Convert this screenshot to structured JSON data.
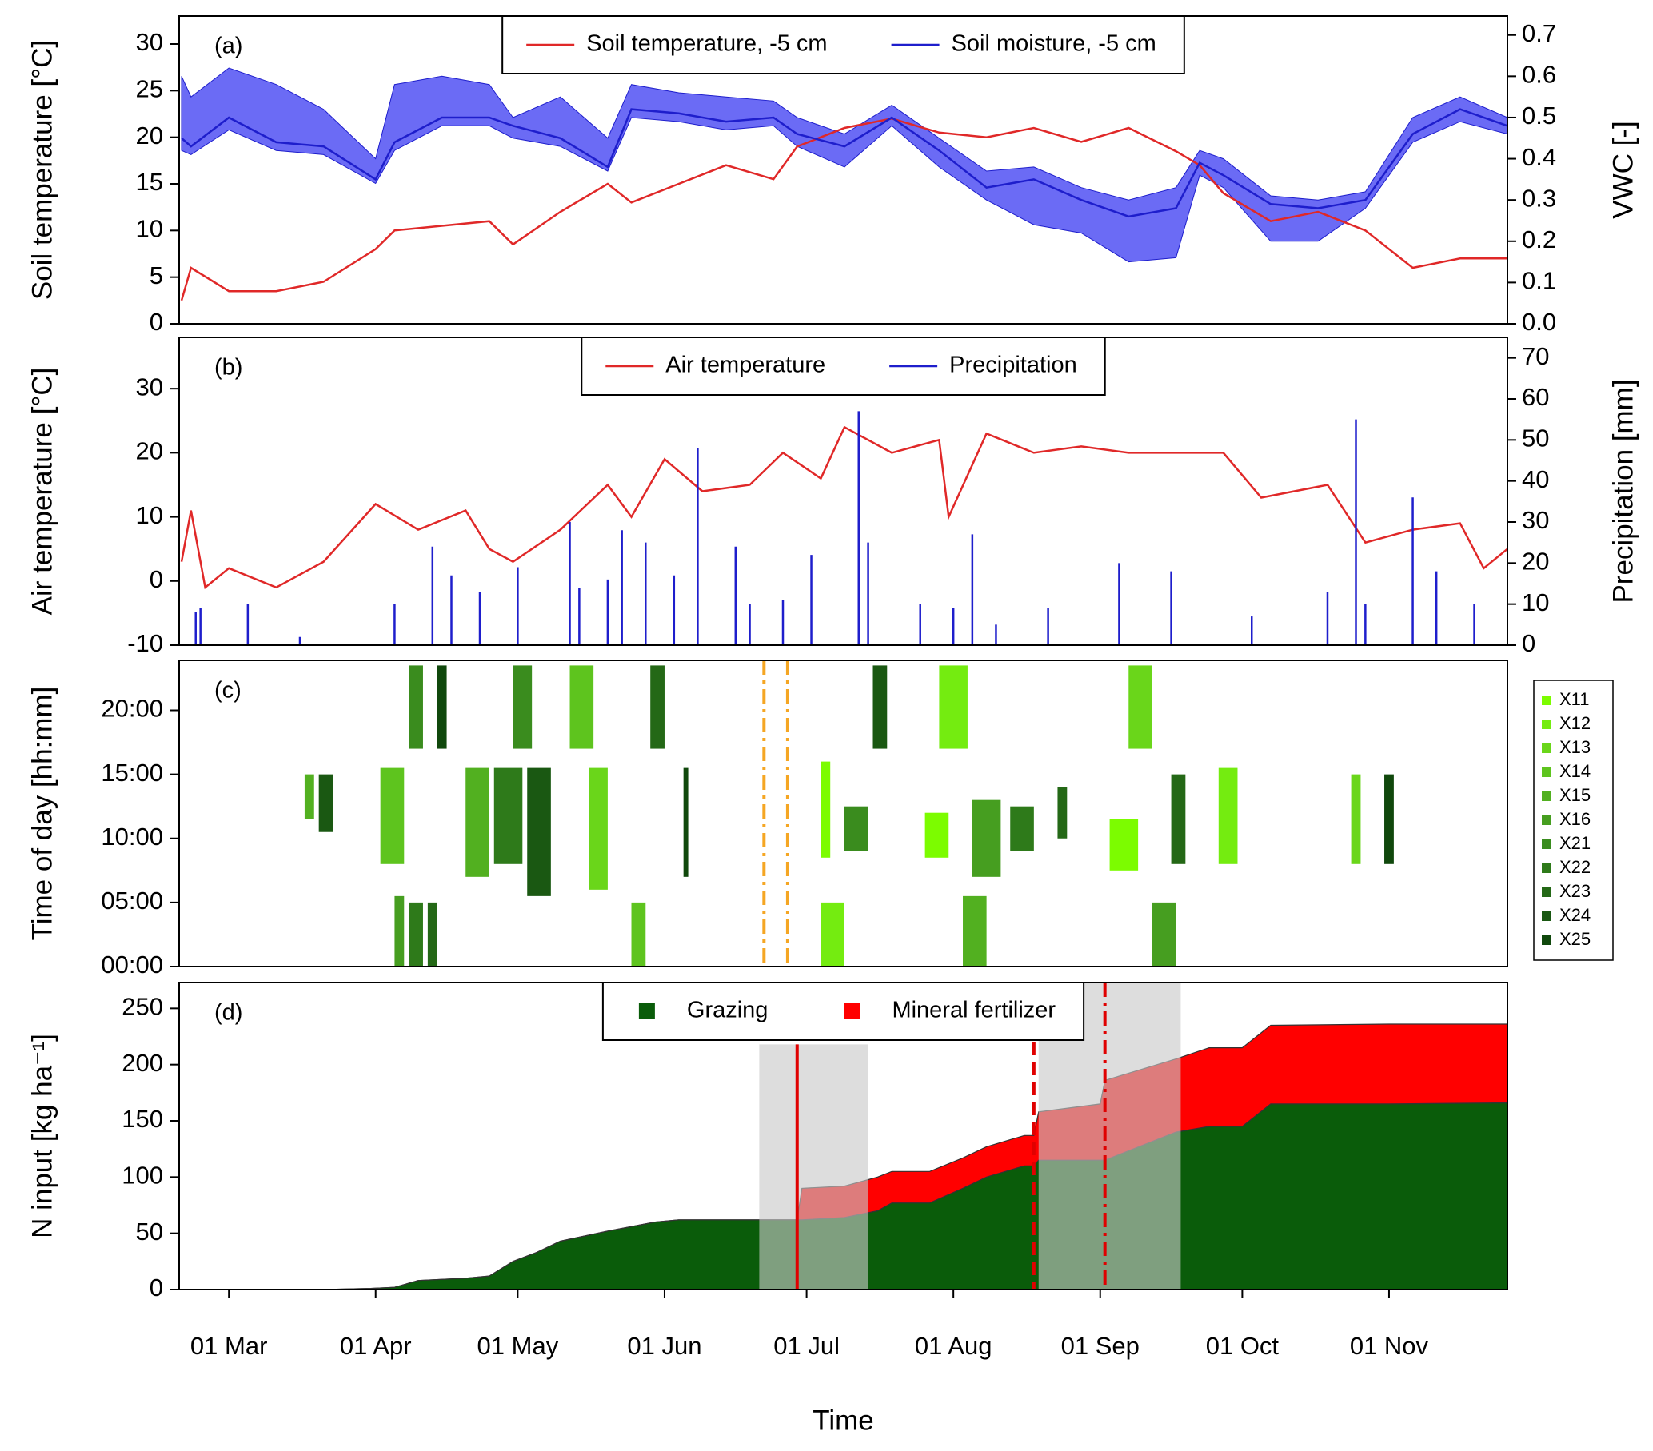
{
  "chart_data": [
    {
      "type": "line",
      "panel_label": "(a)",
      "ylabel": "Soil temperature [°C]",
      "y2label": "VWC [-]",
      "xlim": [
        -10.5,
        270
      ],
      "ylim": [
        0,
        33
      ],
      "yticks": [
        0,
        5,
        10,
        15,
        20,
        25,
        30
      ],
      "y2lim": [
        0,
        0.746
      ],
      "y2ticks": [
        {
          "value": 0,
          "label": "0.0"
        },
        0.1,
        0.2,
        0.3,
        0.4,
        0.5,
        0.6,
        0.7
      ],
      "legend": "top",
      "x": [
        -10,
        -8,
        0,
        10,
        20,
        31,
        35,
        45,
        55,
        60,
        70,
        80,
        85,
        95,
        105,
        115,
        120,
        130,
        140,
        150,
        160,
        170,
        180,
        190,
        200,
        205,
        210,
        220,
        230,
        240,
        250,
        260,
        270
      ],
      "series": [
        {
          "name": "Soil temperature, -5 cm",
          "color": "#e02828",
          "values": [
            2.5,
            6,
            3.5,
            3.5,
            4.5,
            8,
            10,
            10.5,
            11,
            8.5,
            12,
            15,
            13,
            15,
            17,
            15.5,
            19,
            21,
            22,
            20.5,
            20,
            21,
            19.5,
            21,
            18.5,
            17,
            14,
            11,
            12,
            10,
            6,
            7,
            7
          ]
        },
        {
          "name": "Soil moisture, -5 cm",
          "color": "#1e1ecc",
          "band_color": "#6b6bf5",
          "axis": "y2",
          "values": [
            0.45,
            0.43,
            0.5,
            0.44,
            0.43,
            0.35,
            0.44,
            0.5,
            0.5,
            0.48,
            0.45,
            0.38,
            0.52,
            0.51,
            0.49,
            0.5,
            0.46,
            0.43,
            0.5,
            0.42,
            0.33,
            0.35,
            0.3,
            0.26,
            0.28,
            0.39,
            0.36,
            0.29,
            0.28,
            0.3,
            0.46,
            0.52,
            0.48
          ],
          "lower": [
            0.42,
            0.41,
            0.47,
            0.42,
            0.41,
            0.34,
            0.42,
            0.48,
            0.48,
            0.45,
            0.43,
            0.37,
            0.5,
            0.49,
            0.47,
            0.48,
            0.43,
            0.38,
            0.48,
            0.38,
            0.3,
            0.24,
            0.22,
            0.15,
            0.16,
            0.36,
            0.33,
            0.2,
            0.2,
            0.28,
            0.44,
            0.49,
            0.46
          ],
          "upper": [
            0.6,
            0.55,
            0.62,
            0.58,
            0.52,
            0.4,
            0.58,
            0.6,
            0.58,
            0.5,
            0.55,
            0.45,
            0.58,
            0.56,
            0.55,
            0.54,
            0.5,
            0.46,
            0.53,
            0.45,
            0.37,
            0.38,
            0.33,
            0.3,
            0.33,
            0.42,
            0.4,
            0.31,
            0.3,
            0.32,
            0.5,
            0.55,
            0.5
          ]
        }
      ]
    },
    {
      "type": "combo",
      "panel_label": "(b)",
      "ylabel": "Air temperature [°C]",
      "y2label": "Precipitation [mm]",
      "xlim": [
        -10.5,
        270
      ],
      "ylim": [
        -10,
        38
      ],
      "yticks": [
        -10,
        0,
        10,
        20,
        30
      ],
      "y2lim": [
        0,
        75
      ],
      "y2ticks": [
        0,
        10,
        20,
        30,
        40,
        50,
        60,
        70
      ],
      "legend": "top",
      "series": [
        {
          "name": "Air temperature",
          "color": "#e02828",
          "kind": "line",
          "x": [
            -10,
            -8,
            -5,
            0,
            10,
            20,
            31,
            40,
            50,
            55,
            60,
            70,
            80,
            85,
            92,
            100,
            110,
            117,
            125,
            130,
            140,
            150,
            152,
            160,
            170,
            180,
            190,
            200,
            210,
            218,
            225,
            232,
            240,
            250,
            260,
            265,
            270
          ],
          "values": [
            3,
            11,
            -1,
            2,
            -1,
            3,
            12,
            8,
            11,
            5,
            3,
            8,
            15,
            10,
            19,
            14,
            15,
            20,
            16,
            24,
            20,
            22,
            10,
            23,
            20,
            21,
            20,
            20,
            20,
            13,
            14,
            15,
            6,
            8,
            9,
            2,
            5
          ]
        },
        {
          "name": "Precipitation",
          "color": "#1e1ecc",
          "kind": "bar",
          "axis": "y2",
          "x": [
            -7,
            -6,
            4,
            15,
            35,
            43,
            47,
            53,
            61,
            72,
            74,
            80,
            83,
            88,
            94,
            99,
            107,
            110,
            117,
            123,
            133,
            135,
            146,
            153,
            157,
            162,
            173,
            188,
            199,
            216,
            232,
            238,
            240,
            250,
            255,
            263
          ],
          "values": [
            8,
            9,
            10,
            2,
            10,
            24,
            17,
            13,
            19,
            30,
            14,
            16,
            28,
            25,
            17,
            48,
            24,
            10,
            11,
            22,
            57,
            25,
            10,
            9,
            27,
            5,
            9,
            20,
            18,
            7,
            13,
            55,
            10,
            36,
            18,
            10
          ]
        }
      ]
    },
    {
      "type": "timeline",
      "panel_label": "(c)",
      "ylabel": "Time of day [hh:mm]",
      "xlim": [
        -10.5,
        270
      ],
      "ylim": [
        0,
        23.9
      ],
      "yticks": [
        {
          "value": 0,
          "label": "00:00"
        },
        {
          "value": 5,
          "label": "05:00"
        },
        {
          "value": 10,
          "label": "10:00"
        },
        {
          "value": 15,
          "label": "15:00"
        },
        {
          "value": 20,
          "label": "20:00"
        }
      ],
      "legend": "right",
      "vlines": {
        "x": [
          113,
          118
        ],
        "color": "#f5a623",
        "style": "dashdot"
      },
      "series": [
        {
          "name": "X11",
          "color": "#7cfc00",
          "blocks": [
            {
              "x": [
                125,
                127
              ],
              "y": [
                8.5,
                16
              ]
            },
            {
              "x": [
                147,
                152
              ],
              "y": [
                8.5,
                12
              ]
            },
            {
              "x": [
                186,
                192
              ],
              "y": [
                7.5,
                11.5
              ]
            }
          ]
        },
        {
          "name": "X12",
          "color": "#74ec10",
          "blocks": [
            {
              "x": [
                125,
                130
              ],
              "y": [
                0,
                5
              ]
            },
            {
              "x": [
                150,
                156
              ],
              "y": [
                17,
                23.5
              ]
            },
            {
              "x": [
                209,
                213
              ],
              "y": [
                8,
                15.5
              ]
            }
          ]
        },
        {
          "name": "X13",
          "color": "#6ad61a",
          "blocks": [
            {
              "x": [
                237,
                239
              ],
              "y": [
                8,
                15
              ]
            },
            {
              "x": [
                190,
                195
              ],
              "y": [
                17,
                23.5
              ]
            },
            {
              "x": [
                76,
                80
              ],
              "y": [
                6,
                15.5
              ]
            }
          ]
        },
        {
          "name": "X14",
          "color": "#5ec41e",
          "blocks": [
            {
              "x": [
                32,
                37
              ],
              "y": [
                8,
                15.5
              ]
            },
            {
              "x": [
                85,
                88
              ],
              "y": [
                0,
                5
              ]
            },
            {
              "x": [
                72,
                77
              ],
              "y": [
                17,
                23.5
              ]
            }
          ]
        },
        {
          "name": "X15",
          "color": "#52b020",
          "blocks": [
            {
              "x": [
                16,
                18
              ],
              "y": [
                11.5,
                15
              ]
            },
            {
              "x": [
                50,
                55
              ],
              "y": [
                7,
                15.5
              ]
            },
            {
              "x": [
                155,
                160
              ],
              "y": [
                0,
                5.5
              ]
            }
          ]
        },
        {
          "name": "X16",
          "color": "#469e20",
          "blocks": [
            {
              "x": [
                35,
                37
              ],
              "y": [
                0,
                5.5
              ]
            },
            {
              "x": [
                157,
                163
              ],
              "y": [
                7,
                13
              ]
            },
            {
              "x": [
                195,
                200
              ],
              "y": [
                0,
                5
              ]
            }
          ]
        },
        {
          "name": "X21",
          "color": "#3a8c1e",
          "blocks": [
            {
              "x": [
                38,
                41
              ],
              "y": [
                17,
                23.5
              ]
            },
            {
              "x": [
                60,
                64
              ],
              "y": [
                17,
                23.5
              ]
            },
            {
              "x": [
                130,
                135
              ],
              "y": [
                9,
                12.5
              ]
            }
          ]
        },
        {
          "name": "X22",
          "color": "#2e7a1a",
          "blocks": [
            {
              "x": [
                38,
                41
              ],
              "y": [
                0,
                5
              ]
            },
            {
              "x": [
                56,
                62
              ],
              "y": [
                8,
                15.5
              ]
            },
            {
              "x": [
                165,
                170
              ],
              "y": [
                9,
                12.5
              ]
            }
          ]
        },
        {
          "name": "X23",
          "color": "#246816",
          "blocks": [
            {
              "x": [
                42,
                44
              ],
              "y": [
                0,
                5
              ]
            },
            {
              "x": [
                89,
                92
              ],
              "y": [
                17,
                23.5
              ]
            },
            {
              "x": [
                175,
                177
              ],
              "y": [
                10,
                14
              ]
            },
            {
              "x": [
                199,
                202
              ],
              "y": [
                8,
                15
              ]
            }
          ]
        },
        {
          "name": "X24",
          "color": "#1a5812",
          "blocks": [
            {
              "x": [
                19,
                22
              ],
              "y": [
                10.5,
                15
              ]
            },
            {
              "x": [
                63,
                68
              ],
              "y": [
                5.5,
                15.5
              ]
            },
            {
              "x": [
                136,
                139
              ],
              "y": [
                17,
                23.5
              ]
            }
          ]
        },
        {
          "name": "X25",
          "color": "#10480c",
          "blocks": [
            {
              "x": [
                44,
                46
              ],
              "y": [
                17,
                23.5
              ]
            },
            {
              "x": [
                96,
                97
              ],
              "y": [
                7,
                15.5
              ]
            },
            {
              "x": [
                244,
                246
              ],
              "y": [
                8,
                15
              ]
            }
          ]
        }
      ]
    },
    {
      "type": "area",
      "panel_label": "(d)",
      "ylabel": "N input [kg ha⁻¹]",
      "xlabel": "Time",
      "xlim": [
        -10.5,
        270
      ],
      "ylim": [
        0,
        273
      ],
      "yticks": [
        0,
        50,
        100,
        150,
        200,
        250
      ],
      "xticks": [
        {
          "value": 0,
          "label": "01 Mar"
        },
        {
          "value": 31,
          "label": "01 Apr"
        },
        {
          "value": 61,
          "label": "01 May"
        },
        {
          "value": 92,
          "label": "01 Jun"
        },
        {
          "value": 122,
          "label": "01 Jul"
        },
        {
          "value": 153,
          "label": "01 Aug"
        },
        {
          "value": 184,
          "label": "01 Sep"
        },
        {
          "value": 214,
          "label": "01 Oct"
        },
        {
          "value": 245,
          "label": "01 Nov"
        }
      ],
      "legend": "top",
      "stacked": true,
      "x": [
        -10,
        20,
        30,
        35,
        40,
        50,
        55,
        60,
        65,
        70,
        80,
        90,
        95,
        120,
        121,
        130,
        137,
        140,
        148,
        155,
        160,
        168,
        170,
        171,
        184,
        185,
        200,
        207,
        214,
        220,
        245,
        270
      ],
      "series": [
        {
          "name": "Grazing",
          "color": "#0a5c0a",
          "values": [
            0,
            0,
            1,
            2,
            8,
            10,
            12,
            25,
            33,
            43,
            52,
            60,
            62,
            62,
            62,
            64,
            70,
            77,
            77,
            90,
            100,
            110,
            110,
            115,
            115,
            115,
            140,
            145,
            145,
            165,
            165,
            166
          ]
        },
        {
          "name": "Mineral fertilizer",
          "color": "#ff0000",
          "values": [
            0,
            0,
            0,
            0,
            0,
            0,
            0,
            0,
            0,
            0,
            0,
            0,
            0,
            0,
            28,
            28,
            30,
            28,
            28,
            27,
            27,
            27,
            27,
            43,
            50,
            71,
            65,
            70,
            70,
            70,
            71,
            70
          ]
        }
      ],
      "shaded": [
        {
          "x": [
            112,
            135
          ],
          "top": 218
        },
        {
          "x": [
            171,
            201
          ],
          "top": 273
        }
      ],
      "vlines": {
        "x": [
          120,
          170,
          185
        ],
        "color": "#e00000",
        "style": [
          "solid",
          "dashed",
          "dashdot"
        ]
      }
    }
  ]
}
